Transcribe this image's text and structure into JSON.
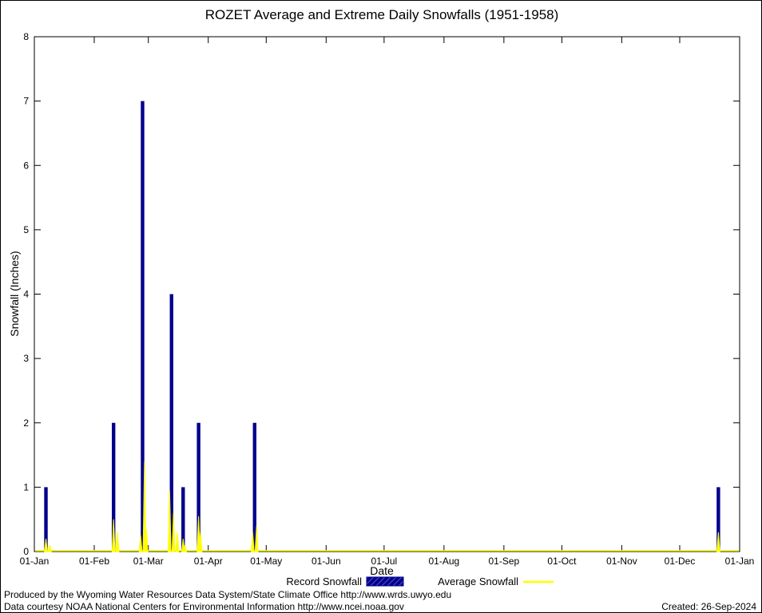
{
  "title": "ROZET Average and Extreme Daily Snowfalls (1951-1958)",
  "legend": {
    "record_label": "Record Snowfall",
    "average_label": "Average Snowfall"
  },
  "footer": {
    "produced": "Produced by the Wyoming Water Resources Data System/State Climate Office http://www.wrds.uwyo.edu",
    "courtesy": "Data courtesy NOAA National Centers for Environmental Information http://www.ncei.noaa.gov",
    "created": "Created: 26-Sep-2024"
  },
  "colors": {
    "record": "#00008B",
    "average": "#FFFF00",
    "axis": "#000000",
    "background": "#FFFFFF"
  },
  "chart_data": {
    "type": "bar",
    "title": "ROZET Average and Extreme Daily Snowfalls (1951-1958)",
    "xlabel": "Date",
    "ylabel": "Snowfall (Inches)",
    "ylim": [
      0,
      8
    ],
    "y_ticks": [
      0,
      1,
      2,
      3,
      4,
      5,
      6,
      7,
      8
    ],
    "x_axis_days": 365,
    "grid": false,
    "legend_position": "bottom-center",
    "x_ticks": [
      {
        "day": 0,
        "label": "01-Jan"
      },
      {
        "day": 31,
        "label": "01-Feb"
      },
      {
        "day": 59,
        "label": "01-Mar"
      },
      {
        "day": 90,
        "label": "01-Apr"
      },
      {
        "day": 120,
        "label": "01-May"
      },
      {
        "day": 151,
        "label": "01-Jun"
      },
      {
        "day": 181,
        "label": "01-Jul"
      },
      {
        "day": 212,
        "label": "01-Aug"
      },
      {
        "day": 243,
        "label": "01-Sep"
      },
      {
        "day": 273,
        "label": "01-Oct"
      },
      {
        "day": 304,
        "label": "01-Nov"
      },
      {
        "day": 334,
        "label": "01-Dec"
      },
      {
        "day": 365,
        "label": "01-Jan"
      }
    ],
    "series": [
      {
        "name": "Record Snowfall",
        "style": "bar",
        "color": "#00008B",
        "points": [
          {
            "day": 6,
            "value": 1.0
          },
          {
            "day": 41,
            "value": 2.0
          },
          {
            "day": 56,
            "value": 7.0
          },
          {
            "day": 71,
            "value": 4.0
          },
          {
            "day": 77,
            "value": 1.0
          },
          {
            "day": 85,
            "value": 2.0
          },
          {
            "day": 114,
            "value": 2.0
          },
          {
            "day": 354,
            "value": 1.0
          }
        ]
      },
      {
        "name": "Average Snowfall",
        "style": "impulse",
        "color": "#FFFF00",
        "points": [
          {
            "day": 6,
            "value": 0.2
          },
          {
            "day": 8,
            "value": 0.1
          },
          {
            "day": 41,
            "value": 0.5
          },
          {
            "day": 43,
            "value": 0.3
          },
          {
            "day": 55,
            "value": 0.25
          },
          {
            "day": 57,
            "value": 1.4
          },
          {
            "day": 58,
            "value": 0.35
          },
          {
            "day": 70,
            "value": 0.95
          },
          {
            "day": 72,
            "value": 0.6
          },
          {
            "day": 74,
            "value": 0.3
          },
          {
            "day": 77,
            "value": 0.2
          },
          {
            "day": 78,
            "value": 0.1
          },
          {
            "day": 85,
            "value": 0.55
          },
          {
            "day": 86,
            "value": 0.3
          },
          {
            "day": 113,
            "value": 0.3
          },
          {
            "day": 115,
            "value": 0.4
          },
          {
            "day": 354,
            "value": 0.3
          }
        ]
      }
    ]
  }
}
